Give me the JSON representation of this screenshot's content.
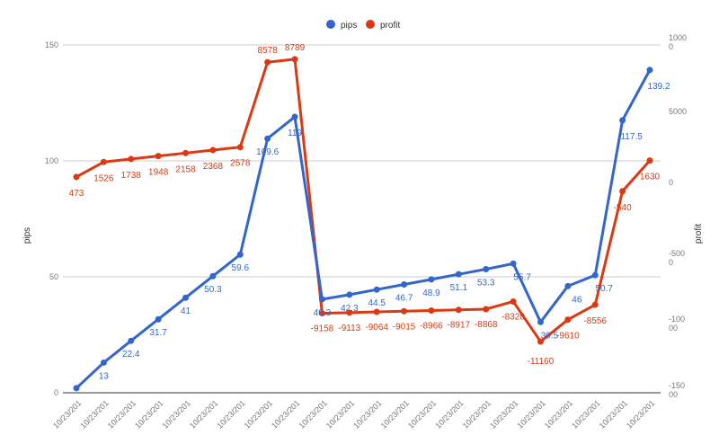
{
  "chart_data": {
    "type": "line",
    "categories": [
      "10/23/201",
      "10/23/201",
      "10/23/201",
      "10/23/201",
      "10/23/201",
      "10/23/201",
      "10/23/201",
      "10/23/201",
      "10/23/201",
      "10/23/201",
      "10/23/201",
      "10/23/201",
      "10/23/201",
      "10/23/201",
      "10/23/201",
      "10/23/201",
      "10/23/201",
      "10/23/201",
      "10/23/201",
      "10/23/201",
      "10/23/201",
      "10/23/201"
    ],
    "series": [
      {
        "name": "pips",
        "axis": "left",
        "color": "#3366cc",
        "values": [
          2,
          13,
          22.4,
          31.7,
          41,
          50.3,
          59.6,
          109.6,
          119,
          40.3,
          42.3,
          44.5,
          46.7,
          48.9,
          51.1,
          53.3,
          55.7,
          30.5,
          46,
          50.7,
          117.5,
          139.2
        ],
        "labels": [
          "",
          "13",
          "22.4",
          "31.7",
          "41",
          "50.3",
          "59.6",
          "109.6",
          "119",
          "40.3",
          "42.3",
          "44.5",
          "46.7",
          "48.9",
          "51.1",
          "53.3",
          "55.7",
          "30.5",
          "46",
          "50.7",
          "117.5",
          "139.2"
        ]
      },
      {
        "name": "profit",
        "axis": "right",
        "color": "#dc3912",
        "values": [
          473,
          1526,
          1738,
          1948,
          2158,
          2368,
          2578,
          8578,
          8789,
          -9158,
          -9113,
          -9064,
          -9015,
          -8966,
          -8917,
          -8868,
          -8328,
          -11160,
          -9610,
          -8556,
          -540,
          1630
        ],
        "labels": [
          "473",
          "1526",
          "1738",
          "1948",
          "2158",
          "2368",
          "2578",
          "8578",
          "8789",
          "-9158",
          "-9113",
          "-9064",
          "-9015",
          "-8966",
          "-8917",
          "-8868",
          "-8328",
          "-11160",
          "-9610",
          "-8556",
          "-540",
          "1630"
        ]
      }
    ],
    "left_axis": {
      "title": "pips",
      "min": 0,
      "max": 150,
      "ticks": [
        "0",
        "50",
        "100",
        "150"
      ]
    },
    "right_axis": {
      "title": "profit",
      "ticks": [
        [
          "1000",
          "0"
        ],
        [
          "5000"
        ],
        [
          "0"
        ],
        [
          "-500",
          "0"
        ],
        [
          "-100",
          "00"
        ],
        [
          "-150",
          "00"
        ]
      ]
    },
    "legend": {
      "position": "top",
      "entries": [
        "pips",
        "profit"
      ]
    },
    "grid": true
  }
}
